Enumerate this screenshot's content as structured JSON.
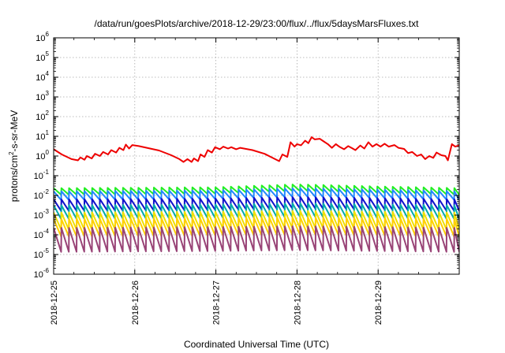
{
  "chart_data": {
    "type": "line",
    "title": "/data/run/goesPlots/archive/2018-12-29/23:00/flux/../flux/5daysMarsFluxes.txt",
    "xlabel": "Coordinated Universal Time (UTC)",
    "ylabel": "protons/cm2-s-sr-MeV",
    "ylabel_parts": {
      "base": "protons/cm",
      "sup": "2",
      "rest": "-s-sr-MeV"
    },
    "yscale": "log",
    "ylim": [
      1e-06,
      1000000.0
    ],
    "xlim": [
      0,
      5
    ],
    "x_units": "days since 2018-12-25 00:00 UTC",
    "x_tick_values": [
      0,
      1,
      2,
      3,
      4
    ],
    "x_tick_labels": [
      "2018-12-25",
      "2018-12-26",
      "2018-12-27",
      "2018-12-28",
      "2018-12-29"
    ],
    "y_tick_exponents": [
      -6,
      -5,
      -4,
      -3,
      -2,
      -1,
      0,
      1,
      2,
      3,
      4,
      5,
      6
    ],
    "grid": true,
    "legend": "none",
    "series_colors": [
      "#ee0000",
      "#22ee22",
      "#2288ff",
      "#1111cc",
      "#00aaaa",
      "#f0e000",
      "#ffd000",
      "#994477"
    ],
    "series": [
      {
        "values": [
          [
            0.0,
            2.2
          ],
          [
            0.1,
            1.2
          ],
          [
            0.22,
            0.7
          ],
          [
            0.3,
            0.6
          ],
          [
            0.33,
            0.85
          ],
          [
            0.38,
            0.65
          ],
          [
            0.41,
            1.0
          ],
          [
            0.47,
            0.75
          ],
          [
            0.51,
            1.3
          ],
          [
            0.57,
            1.0
          ],
          [
            0.61,
            1.6
          ],
          [
            0.67,
            1.2
          ],
          [
            0.71,
            2.0
          ],
          [
            0.77,
            1.5
          ],
          [
            0.81,
            2.6
          ],
          [
            0.86,
            2.0
          ],
          [
            0.89,
            3.8
          ],
          [
            0.93,
            2.4
          ],
          [
            0.97,
            3.6
          ],
          [
            1.05,
            3.2
          ],
          [
            1.15,
            2.6
          ],
          [
            1.3,
            1.9
          ],
          [
            1.45,
            1.1
          ],
          [
            1.55,
            0.7
          ],
          [
            1.6,
            0.5
          ],
          [
            1.65,
            0.7
          ],
          [
            1.7,
            0.5
          ],
          [
            1.73,
            0.75
          ],
          [
            1.78,
            0.55
          ],
          [
            1.81,
            1.2
          ],
          [
            1.86,
            0.9
          ],
          [
            1.9,
            2.0
          ],
          [
            1.95,
            1.5
          ],
          [
            1.99,
            2.8
          ],
          [
            2.05,
            2.2
          ],
          [
            2.09,
            3.0
          ],
          [
            2.15,
            2.4
          ],
          [
            2.19,
            2.8
          ],
          [
            2.25,
            2.2
          ],
          [
            2.3,
            2.6
          ],
          [
            2.45,
            2.0
          ],
          [
            2.6,
            1.3
          ],
          [
            2.7,
            0.8
          ],
          [
            2.78,
            0.55
          ],
          [
            2.82,
            1.2
          ],
          [
            2.88,
            0.9
          ],
          [
            2.92,
            5.0
          ],
          [
            2.97,
            3.0
          ],
          [
            3.0,
            4.0
          ],
          [
            3.05,
            3.5
          ],
          [
            3.1,
            6.0
          ],
          [
            3.14,
            4.5
          ],
          [
            3.18,
            9.0
          ],
          [
            3.22,
            7.0
          ],
          [
            3.28,
            7.5
          ],
          [
            3.33,
            5.5
          ],
          [
            3.38,
            4.0
          ],
          [
            3.43,
            2.6
          ],
          [
            3.48,
            4.0
          ],
          [
            3.52,
            3.0
          ],
          [
            3.58,
            2.2
          ],
          [
            3.63,
            3.2
          ],
          [
            3.68,
            2.5
          ],
          [
            3.72,
            2.0
          ],
          [
            3.78,
            3.4
          ],
          [
            3.83,
            2.4
          ],
          [
            3.88,
            5.0
          ],
          [
            3.93,
            3.0
          ],
          [
            3.98,
            4.0
          ],
          [
            4.03,
            3.0
          ],
          [
            4.08,
            4.2
          ],
          [
            4.13,
            3.0
          ],
          [
            4.2,
            3.6
          ],
          [
            4.25,
            2.6
          ],
          [
            4.32,
            2.3
          ],
          [
            4.37,
            1.4
          ],
          [
            4.42,
            1.6
          ],
          [
            4.48,
            1.0
          ],
          [
            4.53,
            1.2
          ],
          [
            4.58,
            0.7
          ],
          [
            4.63,
            1.0
          ],
          [
            4.68,
            0.8
          ],
          [
            4.72,
            1.5
          ],
          [
            4.78,
            1.1
          ],
          [
            4.83,
            1.0
          ],
          [
            4.86,
            0.6
          ],
          [
            4.91,
            4.0
          ],
          [
            4.95,
            3.0
          ],
          [
            5.0,
            3.5
          ]
        ]
      },
      {
        "sawtooth": {
          "high": 0.026,
          "low": 0.012,
          "period": 0.095,
          "slow": [
            [
              0,
              0.9
            ],
            [
              2.0,
              1.0
            ],
            [
              3.0,
              1.4
            ],
            [
              4.0,
              1.1
            ],
            [
              5.0,
              0.9
            ]
          ]
        }
      },
      {
        "sawtooth": {
          "high": 0.018,
          "low": 0.0065,
          "period": 0.095,
          "slow": [
            [
              0,
              0.9
            ],
            [
              2.0,
              1.0
            ],
            [
              3.0,
              1.3
            ],
            [
              4.0,
              1.1
            ],
            [
              5.0,
              0.9
            ]
          ]
        }
      },
      {
        "sawtooth": {
          "high": 0.007,
          "low": 0.0018,
          "period": 0.095,
          "slow": [
            [
              0,
              0.9
            ],
            [
              2.0,
              1.0
            ],
            [
              3.0,
              1.2
            ],
            [
              4.0,
              1.05
            ],
            [
              5.0,
              0.9
            ]
          ]
        }
      },
      {
        "sawtooth": {
          "high": 0.0035,
          "low": 0.0007,
          "period": 0.095,
          "slow": [
            [
              0,
              0.9
            ],
            [
              2.0,
              1.0
            ],
            [
              3.0,
              1.15
            ],
            [
              4.0,
              1.0
            ],
            [
              5.0,
              0.9
            ]
          ]
        }
      },
      {
        "sawtooth": {
          "high": 0.0015,
          "low": 0.0002,
          "period": 0.095,
          "slow": [
            [
              0,
              0.9
            ],
            [
              2.0,
              1.0
            ],
            [
              3.0,
              1.1
            ],
            [
              4.0,
              1.0
            ],
            [
              5.0,
              0.9
            ]
          ]
        }
      },
      {
        "sawtooth": {
          "high": 0.0007,
          "low": 9e-05,
          "period": 0.095,
          "slow": [
            [
              0,
              0.9
            ],
            [
              2.0,
              1.0
            ],
            [
              3.0,
              1.1
            ],
            [
              4.0,
              1.0
            ],
            [
              5.0,
              0.9
            ]
          ]
        }
      },
      {
        "sawtooth": {
          "high": 0.00025,
          "low": 1.5e-05,
          "period": 0.095,
          "slow": [
            [
              0,
              0.9
            ],
            [
              2.0,
              1.0
            ],
            [
              3.0,
              1.1
            ],
            [
              4.0,
              1.0
            ],
            [
              5.0,
              0.9
            ]
          ]
        }
      }
    ]
  }
}
